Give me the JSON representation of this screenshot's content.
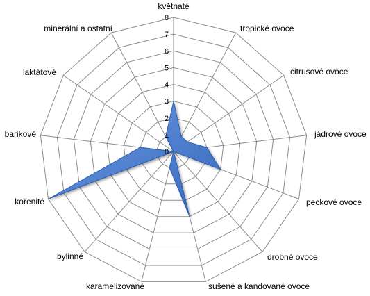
{
  "chart_data": {
    "type": "radar",
    "categories": [
      "květnaté",
      "tropické ovoce",
      "citrusové ovoce",
      "jádrové ovoce",
      "peckové ovoce",
      "drobné ovoce",
      "sušené a kandované ovoce",
      "karamelizované",
      "bylinné",
      "kořenité",
      "barikové",
      "laktátové",
      "minerální a ostatní"
    ],
    "values": [
      3,
      1,
      1,
      2,
      3,
      0,
      4,
      1,
      0,
      8,
      2,
      0,
      1
    ],
    "rlim": [
      0,
      8
    ],
    "ticks": [
      "0",
      "1",
      "2",
      "3",
      "4",
      "5",
      "6",
      "7",
      "8"
    ],
    "grid": true,
    "colors": {
      "fill": "#4a7fd0",
      "stroke": "#2d5fae",
      "grid": "#8c8c8c",
      "spoke": "#8c8c8c"
    }
  }
}
